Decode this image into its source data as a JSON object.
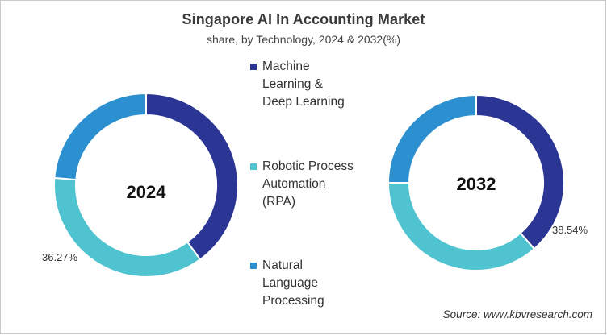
{
  "chart_data": {
    "type": "donut",
    "title": "Singapore AI In Accounting Market",
    "subtitle": "share, by Technology, 2024 & 2032(%)",
    "categories": [
      "Machine Learning & Deep Learning",
      "Robotic Process Automation (RPA)",
      "Natural Language Processing"
    ],
    "colors": [
      "#2b3594",
      "#4fc3d0",
      "#2b8fd0"
    ],
    "series": [
      {
        "name": "2024",
        "values": [
          40.0,
          36.27,
          23.73
        ],
        "labeled": {
          "category": "Robotic Process Automation (RPA)",
          "value": "36.27%"
        }
      },
      {
        "name": "2032",
        "values": [
          38.54,
          36.46,
          25.0
        ],
        "labeled": {
          "category": "Machine Learning & Deep Learning",
          "value": "38.54%"
        }
      }
    ],
    "legend_position": "center",
    "source": "Source: www.kbvresearch.com"
  },
  "header": {
    "title": "Singapore AI In Accounting Market",
    "subtitle": "share, by Technology, 2024 & 2032(%)"
  },
  "donuts": [
    {
      "year": "2024",
      "label_text": "36.27%"
    },
    {
      "year": "2032",
      "label_text": "38.54%"
    }
  ],
  "legend": {
    "items": [
      {
        "lines": [
          "Machine",
          "Learning &",
          "Deep Learning"
        ],
        "color": "#2b3594",
        "icon": "square-marker-icon"
      },
      {
        "lines": [
          "Robotic Process",
          "Automation",
          "(RPA)"
        ],
        "color": "#4fc3d0",
        "icon": "square-marker-icon"
      },
      {
        "lines": [
          "Natural",
          "Language",
          "Processing"
        ],
        "color": "#2b8fd0",
        "icon": "square-marker-icon"
      }
    ]
  },
  "footer": {
    "source": "Source: www.kbvresearch.com"
  }
}
